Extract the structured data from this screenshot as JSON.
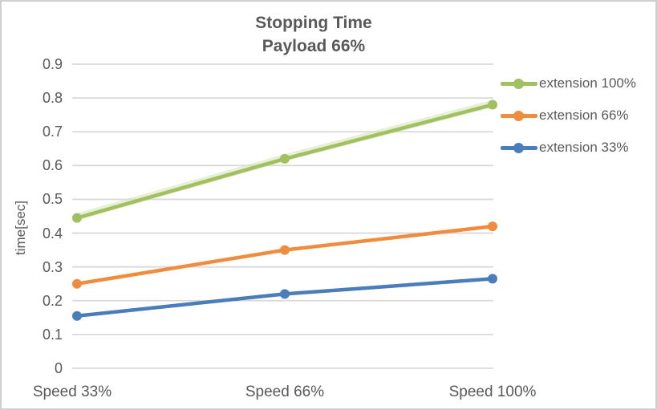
{
  "chart_data": {
    "type": "line",
    "title": "Stopping Time",
    "subtitle": "Payload 66%",
    "categories": [
      "Speed 33%",
      "Speed 66%",
      "Speed 100%"
    ],
    "series": [
      {
        "name": "extension 100%",
        "color": "#a1c05f",
        "halo_color": "#d4e3b4",
        "values": [
          0.445,
          0.62,
          0.78
        ]
      },
      {
        "name": "extension 66%",
        "color": "#f08c3e",
        "halo_color": null,
        "values": [
          0.25,
          0.35,
          0.42
        ]
      },
      {
        "name": "extension 33%",
        "color": "#4a7ebb",
        "halo_color": null,
        "values": [
          0.155,
          0.22,
          0.265
        ]
      }
    ],
    "xlabel": "",
    "ylabel": "time[sec]",
    "ylim": [
      0,
      0.9
    ],
    "yticks": [
      0,
      0.1,
      0.2,
      0.3,
      0.4,
      0.5,
      0.6,
      0.7,
      0.8,
      0.9
    ],
    "ytick_labels": [
      "0",
      "0.1",
      "0.2",
      "0.3",
      "0.4",
      "0.5",
      "0.6",
      "0.7",
      "0.8",
      "0.9"
    ],
    "grid": true,
    "legend_position": "right",
    "marker": "circle",
    "colors": {
      "text": "#595959",
      "gridline": "#d9d9d9",
      "border": "#d0cece",
      "background": "#ffffff"
    }
  }
}
